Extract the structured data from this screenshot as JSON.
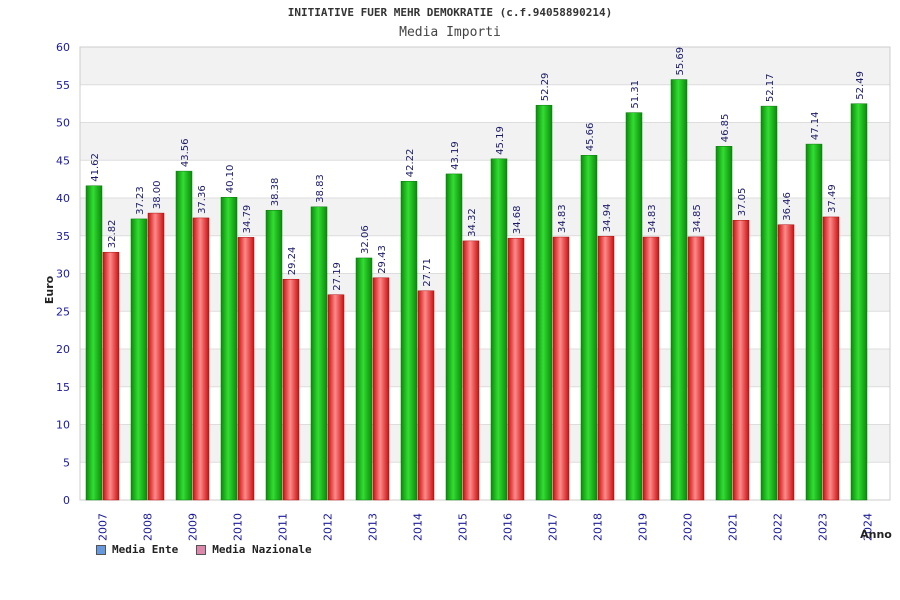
{
  "chart_data": {
    "type": "bar",
    "title": "INITIATIVE FUER MEHR DEMOKRATIE (c.f.94058890214)",
    "subtitle": "Media Importi",
    "ylabel": "Euro",
    "xlabel": "Anno",
    "ylim": [
      0,
      60
    ],
    "yticks": [
      0,
      5,
      10,
      15,
      20,
      25,
      30,
      35,
      40,
      45,
      50,
      55,
      60
    ],
    "grid": true,
    "legend_position": "bottom-left",
    "categories": [
      "2007",
      "2008",
      "2009",
      "2010",
      "2011",
      "2012",
      "2013",
      "2014",
      "2015",
      "2016",
      "2017",
      "2018",
      "2019",
      "2020",
      "2021",
      "2022",
      "2023",
      "2024"
    ],
    "series": [
      {
        "name": "Media Ente",
        "legend_color": "#6699dd",
        "bar_color": "#10b010",
        "values": [
          41.62,
          37.23,
          43.56,
          40.1,
          38.38,
          38.83,
          32.06,
          42.22,
          43.19,
          45.19,
          52.29,
          45.66,
          51.31,
          55.69,
          46.85,
          52.17,
          47.14,
          52.49
        ],
        "labels": [
          "41.62",
          "37.23",
          "43.56",
          "40.10",
          "38.38",
          "38.83",
          "32.06",
          "42.22",
          "43.19",
          "45.19",
          "52.29",
          "45.66",
          "51.31",
          "55.69",
          "46.85",
          "52.17",
          "47.14",
          "52.49"
        ]
      },
      {
        "name": "Media Nazionale",
        "legend_color": "#dd88aa",
        "bar_color": "#e01a1a",
        "values": [
          32.82,
          38.0,
          37.36,
          34.79,
          29.24,
          27.19,
          29.43,
          27.71,
          34.32,
          34.68,
          34.83,
          34.94,
          34.83,
          34.85,
          37.05,
          36.46,
          37.49,
          null
        ],
        "labels": [
          "32.82",
          "38.00",
          "37.36",
          "34.79",
          "29.24",
          "27.19",
          "29.43",
          "27.71",
          "34.32",
          "34.68",
          "34.83",
          "34.94",
          "34.83",
          "34.85",
          "37.05",
          "36.46",
          "37.49",
          null
        ]
      }
    ]
  }
}
